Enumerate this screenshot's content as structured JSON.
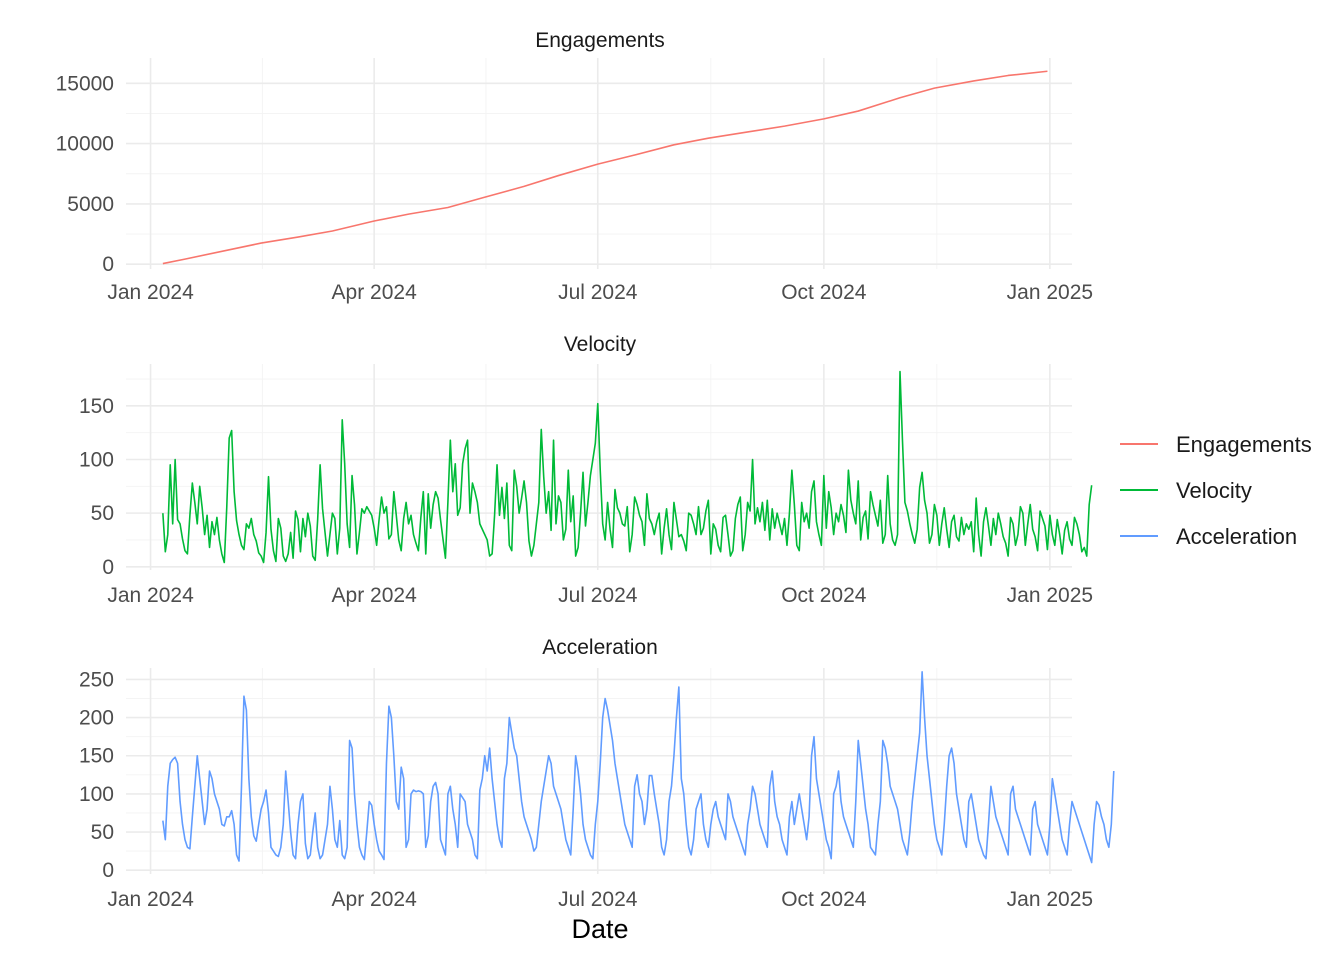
{
  "chart_data": {
    "type": "line",
    "xlabel": "Date",
    "x_ticks": [
      "Jan 2024",
      "Apr 2024",
      "Jul 2024",
      "Oct 2024",
      "Jan 2025"
    ],
    "x_tick_dates": [
      "2024-01-01",
      "2024-04-01",
      "2024-07-01",
      "2024-10-01",
      "2025-01-01"
    ],
    "xlim": [
      "2023-12-22",
      "2025-01-10"
    ],
    "legend_position": "right",
    "grid": true,
    "panels": [
      {
        "title": "Engagements",
        "color": "#F8766D",
        "ylim": [
          -400,
          17100
        ],
        "y_ticks": [
          "0",
          "5000",
          "10000",
          "15000"
        ],
        "series": [
          {
            "name": "Engagements",
            "x": [
              "2024-01-06",
              "2024-01-15",
              "2024-02-01",
              "2024-02-15",
              "2024-03-01",
              "2024-03-15",
              "2024-04-01",
              "2024-04-15",
              "2024-05-01",
              "2024-05-15",
              "2024-06-01",
              "2024-06-15",
              "2024-07-01",
              "2024-07-15",
              "2024-08-01",
              "2024-08-15",
              "2024-09-01",
              "2024-09-15",
              "2024-10-01",
              "2024-10-15",
              "2024-11-01",
              "2024-11-15",
              "2024-12-01",
              "2024-12-15",
              "2024-12-31"
            ],
            "values": [
              50,
              420,
              1150,
              1750,
              2250,
              2750,
              3580,
              4150,
              4700,
              5500,
              6450,
              7350,
              8300,
              9000,
              9900,
              10450,
              11000,
              11450,
              12050,
              12700,
              13800,
              14600,
              15200,
              15650,
              16000
            ]
          }
        ]
      },
      {
        "title": "Velocity",
        "color": "#00BA38",
        "ylim": [
          -3,
          189
        ],
        "y_ticks": [
          "0",
          "50",
          "100",
          "150"
        ],
        "series": [
          {
            "name": "Velocity",
            "x_start": "2024-01-06",
            "x_step_days": 1,
            "values": [
              50,
              14,
              30,
              95,
              40,
              100,
              44,
              40,
              26,
              15,
              12,
              48,
              78,
              60,
              40,
              75,
              55,
              30,
              48,
              18,
              42,
              30,
              46,
              25,
              12,
              4,
              55,
              120,
              127,
              70,
              43,
              30,
              20,
              16,
              40,
              36,
              45,
              30,
              24,
              13,
              10,
              4,
              32,
              84,
              35,
              15,
              5,
              45,
              36,
              10,
              5,
              12,
              32,
              8,
              52,
              44,
              14,
              45,
              28,
              50,
              38,
              10,
              6,
              44,
              95,
              54,
              32,
              10,
              30,
              50,
              45,
              12,
              36,
              137,
              96,
              40,
              18,
              85,
              58,
              12,
              32,
              54,
              50,
              56,
              52,
              48,
              36,
              20,
              44,
              65,
              50,
              56,
              26,
              30,
              70,
              48,
              25,
              15,
              45,
              60,
              40,
              48,
              30,
              22,
              15,
              46,
              70,
              12,
              68,
              36,
              58,
              70,
              64,
              44,
              26,
              8,
              60,
              118,
              70,
              96,
              48,
              55,
              96,
              110,
              118,
              50,
              78,
              70,
              60,
              40,
              35,
              30,
              25,
              10,
              12,
              48,
              95,
              48,
              74,
              45,
              78,
              20,
              15,
              90,
              75,
              50,
              64,
              80,
              60,
              24,
              10,
              20,
              40,
              60,
              128,
              84,
              50,
              70,
              34,
              118,
              40,
              66,
              60,
              25,
              35,
              90,
              42,
              66,
              10,
              18,
              50,
              88,
              38,
              60,
              85,
              100,
              115,
              152,
              90,
              40,
              25,
              60,
              35,
              18,
              72,
              55,
              50,
              40,
              38,
              56,
              14,
              30,
              65,
              58,
              48,
              42,
              20,
              68,
              45,
              40,
              30,
              42,
              50,
              12,
              36,
              54,
              30,
              16,
              60,
              44,
              28,
              30,
              24,
              15,
              50,
              48,
              40,
              30,
              56,
              30,
              36,
              52,
              62,
              12,
              40,
              35,
              20,
              14,
              46,
              48,
              30,
              10,
              15,
              45,
              58,
              65,
              15,
              30,
              60,
              52,
              100,
              40,
              55,
              42,
              60,
              34,
              62,
              25,
              54,
              36,
              50,
              40,
              30,
              45,
              20,
              50,
              90,
              58,
              20,
              15,
              60,
              42,
              50,
              36,
              70,
              80,
              42,
              30,
              20,
              85,
              36,
              70,
              55,
              30,
              50,
              42,
              58,
              48,
              32,
              90,
              62,
              50,
              40,
              80,
              25,
              46,
              52,
              26,
              70,
              58,
              48,
              38,
              62,
              22,
              30,
              85,
              40,
              25,
              20,
              30,
              182,
              118,
              60,
              52,
              40,
              30,
              22,
              35,
              74,
              88,
              62,
              50,
              22,
              30,
              58,
              48,
              20,
              40,
              55,
              35,
              18,
              42,
              48,
              28,
              24,
              46,
              30,
              40,
              35,
              42,
              14,
              64,
              30,
              10,
              42,
              55,
              38,
              20,
              45,
              30,
              50,
              40,
              28,
              22,
              10,
              46,
              40,
              20,
              30,
              56,
              50,
              20,
              40,
              58,
              35,
              28,
              15,
              52,
              45,
              38,
              16,
              48,
              30,
              20,
              44,
              30,
              12,
              34,
              42,
              26,
              20,
              46,
              40,
              30,
              14,
              18,
              10,
              58,
              76
            ]
          }
        ]
      },
      {
        "title": "Acceleration",
        "color": "#619CFF",
        "ylim": [
          -5,
          265
        ],
        "y_ticks": [
          "0",
          "50",
          "100",
          "150",
          "200",
          "250"
        ],
        "series": [
          {
            "name": "Acceleration",
            "x_start": "2024-01-06",
            "x_step_days": 1,
            "values": [
              65,
              40,
              110,
              140,
              145,
              148,
              140,
              90,
              60,
              40,
              30,
              28,
              70,
              110,
              150,
              120,
              90,
              60,
              80,
              130,
              120,
              100,
              90,
              80,
              60,
              58,
              70,
              70,
              78,
              60,
              20,
              12,
              110,
              228,
              210,
              120,
              70,
              45,
              38,
              60,
              80,
              90,
              105,
              75,
              30,
              25,
              20,
              18,
              30,
              60,
              130,
              90,
              50,
              20,
              15,
              60,
              90,
              100,
              35,
              15,
              20,
              50,
              75,
              30,
              15,
              20,
              40,
              60,
              110,
              80,
              40,
              30,
              65,
              20,
              15,
              30,
              170,
              160,
              100,
              60,
              30,
              20,
              14,
              50,
              90,
              85,
              60,
              40,
              25,
              20,
              14,
              140,
              215,
              200,
              150,
              90,
              80,
              135,
              120,
              30,
              40,
              100,
              105,
              103,
              104,
              103,
              100,
              30,
              45,
              90,
              110,
              115,
              100,
              40,
              30,
              20,
              100,
              110,
              80,
              60,
              30,
              100,
              95,
              90,
              60,
              50,
              40,
              20,
              15,
              105,
              120,
              150,
              130,
              160,
              120,
              90,
              60,
              40,
              30,
              120,
              140,
              200,
              180,
              160,
              150,
              120,
              90,
              70,
              60,
              50,
              40,
              25,
              30,
              60,
              90,
              110,
              130,
              150,
              140,
              110,
              100,
              90,
              80,
              60,
              40,
              30,
              20,
              80,
              150,
              130,
              100,
              60,
              40,
              30,
              20,
              15,
              60,
              90,
              140,
              200,
              225,
              210,
              190,
              170,
              140,
              120,
              100,
              80,
              60,
              50,
              40,
              30,
              110,
              125,
              100,
              90,
              60,
              80,
              124,
              124,
              100,
              80,
              60,
              30,
              20,
              40,
              90,
              110,
              150,
              200,
              240,
              120,
              100,
              60,
              30,
              20,
              40,
              80,
              90,
              100,
              60,
              40,
              30,
              60,
              80,
              90,
              70,
              60,
              50,
              40,
              100,
              90,
              70,
              60,
              50,
              40,
              30,
              20,
              60,
              80,
              110,
              100,
              80,
              60,
              50,
              40,
              30,
              110,
              130,
              90,
              70,
              60,
              40,
              30,
              20,
              70,
              90,
              60,
              80,
              100,
              80,
              60,
              40,
              70,
              150,
              175,
              120,
              100,
              80,
              60,
              40,
              30,
              15,
              100,
              110,
              130,
              90,
              70,
              60,
              50,
              40,
              30,
              90,
              170,
              140,
              110,
              80,
              60,
              30,
              25,
              20,
              60,
              90,
              170,
              160,
              140,
              110,
              100,
              90,
              80,
              60,
              40,
              30,
              20,
              50,
              90,
              120,
              150,
              180,
              260,
              200,
              150,
              120,
              90,
              60,
              40,
              30,
              20,
              60,
              110,
              150,
              160,
              140,
              100,
              80,
              60,
              40,
              30,
              90,
              100,
              80,
              60,
              40,
              30,
              20,
              15,
              60,
              110,
              90,
              70,
              60,
              50,
              40,
              30,
              20,
              100,
              110,
              80,
              70,
              60,
              50,
              40,
              30,
              20,
              80,
              90,
              60,
              50,
              40,
              30,
              20,
              60,
              120,
              100,
              80,
              60,
              40,
              30,
              20,
              60,
              90,
              80,
              70,
              60,
              50,
              40,
              30,
              20,
              10,
              60,
              90,
              85,
              70,
              60,
              40,
              30,
              60,
              130
            ]
          }
        ]
      }
    ],
    "legend": [
      {
        "name": "Engagements",
        "color": "#F8766D"
      },
      {
        "name": "Velocity",
        "color": "#00BA38"
      },
      {
        "name": "Acceleration",
        "color": "#619CFF"
      }
    ]
  }
}
